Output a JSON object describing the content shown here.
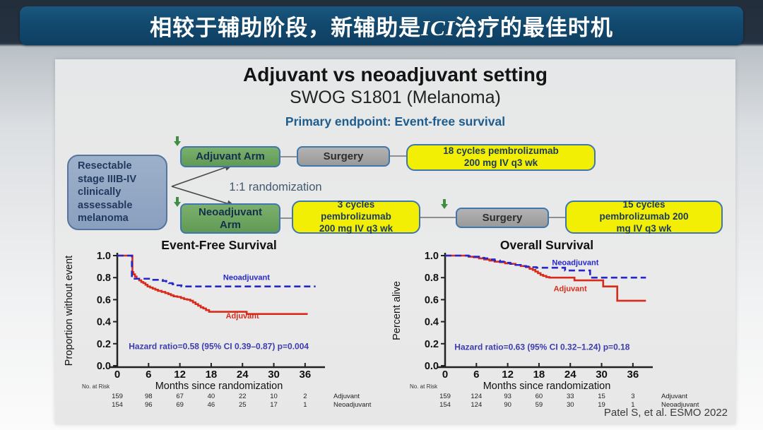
{
  "header": {
    "title_pre": "相较于辅助阶段，新辅助是",
    "title_italic": "ICI",
    "title_post": "治疗的最佳时机",
    "bar_color": "#12496e"
  },
  "slide": {
    "title": "Adjuvant vs neoadjuvant setting",
    "subtitle": "SWOG S1801 (Melanoma)",
    "endpoint": "Primary endpoint: Event-free survival",
    "citation": "Patel S, et al. ESMO 2022",
    "diagram": {
      "patient_box": "Resectable\nstage IIIB-IV\nclinically\nassessable\nmelanoma",
      "randomization": "1:1 randomization",
      "adjuvant_arm": "Adjuvant Arm",
      "neoadjuvant_arm": "Neoadjuvant\nArm",
      "surgery_top": "Surgery",
      "surgery_bottom": "Surgery",
      "adjuvant_treatment": "18 cycles pembrolizumab\n200 mg IV q3 wk",
      "neoadjuvant_treatment_pre": "3 cycles\npembrolizumab\n200 mg IV q3 wk",
      "neoadjuvant_treatment_post": "15 cycles\npembrolizumab 200\nmg IV q3 wk",
      "colors": {
        "green_box": "#6ba45f",
        "yellow_box": "#f2ef04",
        "gray_box": "#a7a7a7",
        "patient_box": "#8ea4c0",
        "box_border": "#3f76ad"
      }
    }
  },
  "chart_data": [
    {
      "type": "line",
      "title": "Event-Free Survival",
      "ylabel": "Proportion without event",
      "xlabel": "Months since randomization",
      "xticks": [
        0,
        6,
        12,
        18,
        24,
        30,
        36
      ],
      "yticks": [
        0.0,
        0.2,
        0.4,
        0.6,
        0.8,
        1.0
      ],
      "xlim": [
        0,
        39
      ],
      "ylim": [
        0,
        1.0
      ],
      "grid": false,
      "annotation": "Hazard ratio=0.58 (95% CI 0.39–0.87) p=0.004",
      "annotation_pos": [
        2.2,
        0.15
      ],
      "annotation_color": "#3c3cae",
      "risk_header": "No. at Risk",
      "series": [
        {
          "name": "Adjuvant",
          "color": "#d92b1b",
          "dash": "solid",
          "label_pos": [
            20.8,
            0.43
          ],
          "steps": [
            [
              0,
              1
            ],
            [
              2.9,
              1
            ],
            [
              2.9,
              0.85
            ],
            [
              3.1,
              0.83
            ],
            [
              3.4,
              0.81
            ],
            [
              3.7,
              0.79
            ],
            [
              4.2,
              0.775
            ],
            [
              4.6,
              0.76
            ],
            [
              5.0,
              0.75
            ],
            [
              5.4,
              0.735
            ],
            [
              5.8,
              0.72
            ],
            [
              6.3,
              0.71
            ],
            [
              6.8,
              0.7
            ],
            [
              7.3,
              0.69
            ],
            [
              7.8,
              0.68
            ],
            [
              8.5,
              0.67
            ],
            [
              9.2,
              0.66
            ],
            [
              9.8,
              0.65
            ],
            [
              10.3,
              0.64
            ],
            [
              10.8,
              0.63
            ],
            [
              11.5,
              0.625
            ],
            [
              12.2,
              0.615
            ],
            [
              12.8,
              0.605
            ],
            [
              13.4,
              0.6
            ],
            [
              14.0,
              0.59
            ],
            [
              14.5,
              0.575
            ],
            [
              15.0,
              0.56
            ],
            [
              15.5,
              0.545
            ],
            [
              16.0,
              0.53
            ],
            [
              16.5,
              0.52
            ],
            [
              17.0,
              0.505
            ],
            [
              17.6,
              0.49
            ],
            [
              24.8,
              0.49
            ],
            [
              24.8,
              0.47
            ],
            [
              36.5,
              0.47
            ]
          ]
        },
        {
          "name": "Neoadjuvant",
          "color": "#2626c9",
          "dash": "dashed",
          "label_pos": [
            20.3,
            0.78
          ],
          "steps": [
            [
              0,
              1
            ],
            [
              2.8,
              1
            ],
            [
              2.8,
              0.79
            ],
            [
              6.2,
              0.79
            ],
            [
              6.6,
              0.78
            ],
            [
              8.3,
              0.78
            ],
            [
              8.7,
              0.77
            ],
            [
              9.4,
              0.765
            ],
            [
              9.9,
              0.75
            ],
            [
              10.6,
              0.74
            ],
            [
              11.3,
              0.73
            ],
            [
              12.3,
              0.72
            ],
            [
              38,
              0.72
            ]
          ]
        }
      ],
      "risk_rows": [
        {
          "name": "Adjuvant",
          "values": [
            159,
            98,
            67,
            40,
            22,
            10,
            2
          ]
        },
        {
          "name": "Neoadjuvant",
          "values": [
            154,
            96,
            69,
            46,
            25,
            17,
            1
          ]
        }
      ]
    },
    {
      "type": "line",
      "title": "Overall Survival",
      "ylabel": "Percent alive",
      "xlabel": "Months since randomization",
      "xticks": [
        0,
        6,
        12,
        18,
        24,
        30,
        36
      ],
      "yticks": [
        0.0,
        0.2,
        0.4,
        0.6,
        0.8,
        1.0
      ],
      "xlim": [
        0,
        39
      ],
      "ylim": [
        0,
        1.0
      ],
      "grid": false,
      "annotation": "Hazard ratio=0.63 (95% CI 0.32–1.24) p=0.18",
      "annotation_pos": [
        1.8,
        0.145
      ],
      "annotation_color": "#3c3cae",
      "risk_header": "No. at Risk",
      "series": [
        {
          "name": "Adjuvant",
          "color": "#d92b1b",
          "dash": "solid",
          "label_pos": [
            20.8,
            0.675
          ],
          "steps": [
            [
              0,
              1
            ],
            [
              3.5,
              1
            ],
            [
              4.5,
              0.99
            ],
            [
              5.5,
              0.985
            ],
            [
              6.5,
              0.975
            ],
            [
              7.5,
              0.965
            ],
            [
              8.5,
              0.955
            ],
            [
              9.5,
              0.945
            ],
            [
              10.5,
              0.94
            ],
            [
              11.5,
              0.93
            ],
            [
              12.5,
              0.925
            ],
            [
              13.5,
              0.915
            ],
            [
              14.5,
              0.905
            ],
            [
              15.5,
              0.895
            ],
            [
              16.2,
              0.88
            ],
            [
              16.8,
              0.87
            ],
            [
              17.3,
              0.855
            ],
            [
              17.8,
              0.84
            ],
            [
              18.3,
              0.825
            ],
            [
              18.8,
              0.815
            ],
            [
              19.4,
              0.805
            ],
            [
              20,
              0.8
            ],
            [
              24.8,
              0.8
            ],
            [
              24.8,
              0.775
            ],
            [
              30.3,
              0.775
            ],
            [
              30.3,
              0.72
            ],
            [
              33,
              0.72
            ],
            [
              33,
              0.59
            ],
            [
              38.5,
              0.59
            ]
          ]
        },
        {
          "name": "Neoadjuvant",
          "color": "#2626c9",
          "dash": "dashed",
          "label_pos": [
            20.5,
            0.915
          ],
          "steps": [
            [
              0,
              1
            ],
            [
              3.5,
              1
            ],
            [
              4.5,
              0.995
            ],
            [
              5.5,
              0.99
            ],
            [
              6.5,
              0.98
            ],
            [
              7.5,
              0.975
            ],
            [
              8.5,
              0.965
            ],
            [
              9.5,
              0.955
            ],
            [
              10.5,
              0.945
            ],
            [
              11.5,
              0.935
            ],
            [
              12.5,
              0.925
            ],
            [
              13.5,
              0.915
            ],
            [
              14.5,
              0.905
            ],
            [
              15.5,
              0.9
            ],
            [
              16.5,
              0.895
            ],
            [
              17.5,
              0.89
            ],
            [
              23,
              0.89
            ],
            [
              23,
              0.865
            ],
            [
              27.8,
              0.865
            ],
            [
              27.8,
              0.8
            ],
            [
              38.5,
              0.8
            ]
          ]
        }
      ],
      "risk_rows": [
        {
          "name": "Adjuvant",
          "values": [
            159,
            124,
            93,
            60,
            33,
            15,
            3
          ]
        },
        {
          "name": "Neoadjuvant",
          "values": [
            154,
            124,
            90,
            59,
            30,
            19,
            1
          ]
        }
      ]
    }
  ]
}
